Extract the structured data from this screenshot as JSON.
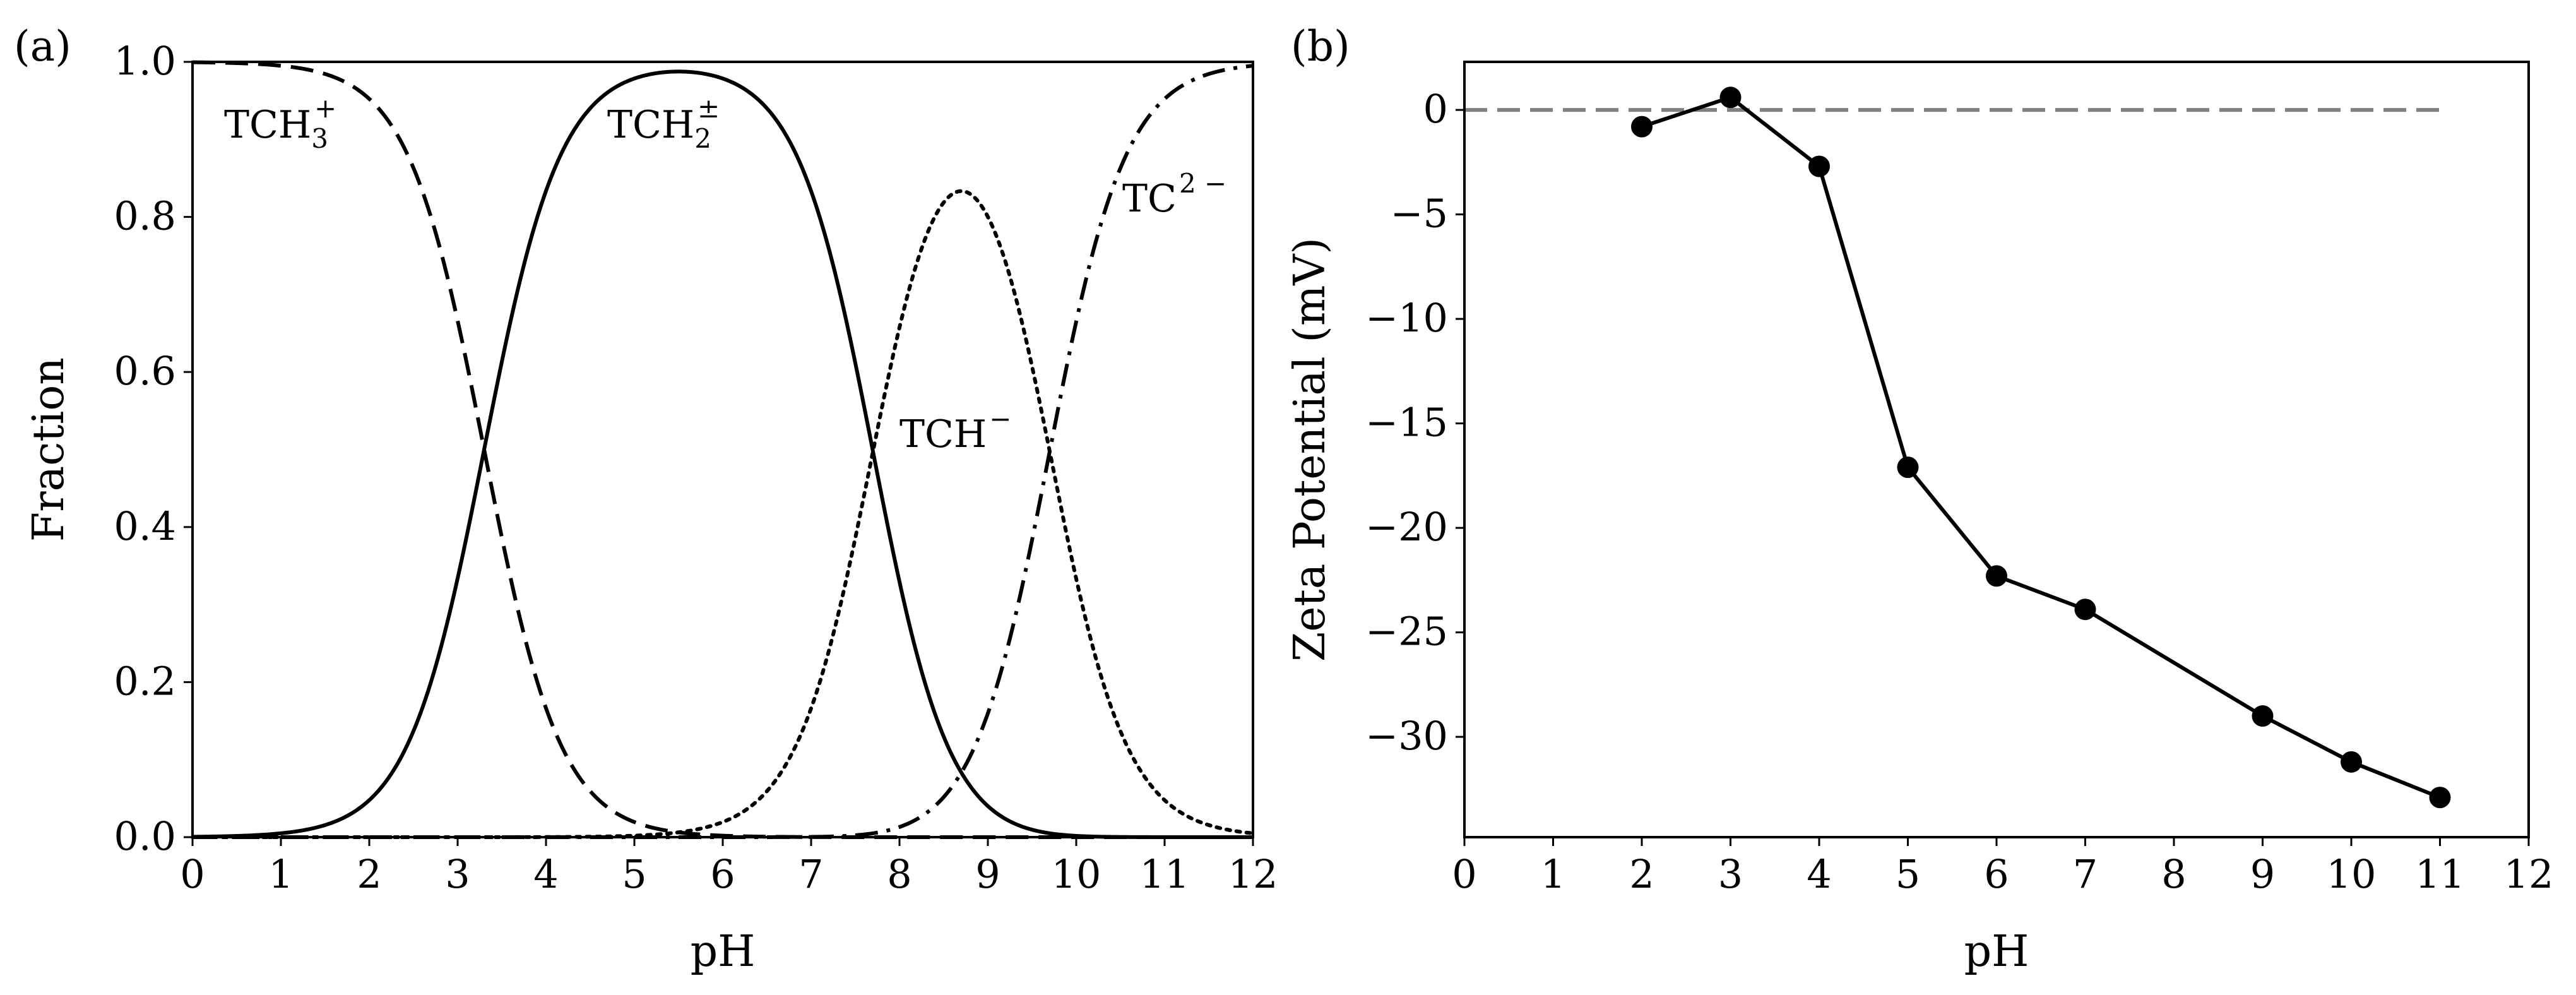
{
  "chart_data": [
    {
      "type": "line",
      "panel_label": "(a)",
      "xlabel": "pH",
      "ylabel": "Fraction",
      "xlim": [
        0,
        12
      ],
      "ylim": [
        0,
        1.0
      ],
      "x_ticks": [
        "0",
        "1",
        "2",
        "3",
        "4",
        "5",
        "6",
        "7",
        "8",
        "9",
        "10",
        "11",
        "12"
      ],
      "y_ticks": [
        "0.0",
        "0.2",
        "0.4",
        "0.6",
        "0.8",
        "1.0"
      ],
      "grid": false,
      "pKa": [
        3.3,
        7.7,
        9.7
      ],
      "series": [
        {
          "name": "TCH3+",
          "label_main": "TCH",
          "label_sub": "3",
          "label_sup": "+",
          "line_style": "dashed",
          "peak_x": 0.0,
          "peak_fraction": 1.0
        },
        {
          "name": "TCH2±",
          "label_main": "TCH",
          "label_sub": "2",
          "label_sup": "±",
          "line_style": "solid",
          "peak_x": 5.5,
          "peak_fraction": 0.99
        },
        {
          "name": "TCH−",
          "label_main": "TCH",
          "label_sub": "",
          "label_sup": "−",
          "line_style": "dotted",
          "peak_x": 8.7,
          "peak_fraction": 0.83
        },
        {
          "name": "TC2−",
          "label_main": "TC",
          "label_sub": "",
          "label_sup": "2 −",
          "line_style": "dashdot",
          "peak_x": 12.0,
          "peak_fraction": 1.0
        }
      ]
    },
    {
      "type": "line",
      "panel_label": "(b)",
      "xlabel": "pH",
      "ylabel": "Zeta Potential (mV)",
      "xlim": [
        0,
        12
      ],
      "ylim": [
        -34.8,
        2.3
      ],
      "x_ticks": [
        "0",
        "1",
        "2",
        "3",
        "4",
        "5",
        "6",
        "7",
        "8",
        "9",
        "10",
        "11",
        "12"
      ],
      "y_ticks": [
        "0",
        "−5",
        "−10",
        "−15",
        "−20",
        "−25",
        "−30"
      ],
      "y_tick_values": [
        0,
        -5,
        -10,
        -15,
        -20,
        -25,
        -30
      ],
      "grid": false,
      "reference_line": {
        "y": 0,
        "x_range": [
          0,
          11
        ],
        "style": "dashed",
        "color": "#808080"
      },
      "series": [
        {
          "name": "Zeta potential",
          "marker": "circle",
          "x": [
            2,
            3,
            4,
            5,
            6,
            7,
            9,
            10,
            11
          ],
          "y": [
            -0.8,
            0.6,
            -2.7,
            -17.1,
            -22.3,
            -23.9,
            -29.0,
            -31.2,
            -32.9
          ]
        }
      ]
    }
  ]
}
